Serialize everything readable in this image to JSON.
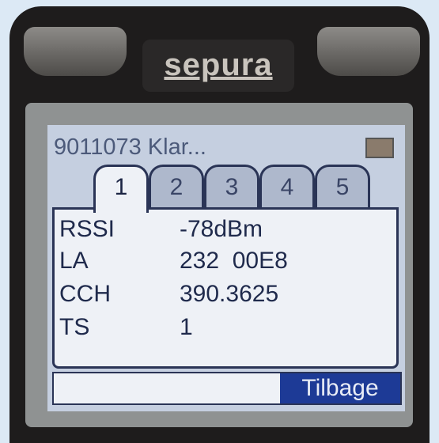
{
  "brand": "sepura",
  "status": {
    "text": "9011073 Klar..."
  },
  "tabs": [
    "1",
    "2",
    "3",
    "4",
    "5"
  ],
  "rows": [
    [
      "RSSI",
      "-78dBm"
    ],
    [
      "LA",
      "232  00E8"
    ],
    [
      "CCH",
      "390.3625"
    ],
    [
      "TS",
      "1"
    ]
  ],
  "softkey": "Tilbage"
}
